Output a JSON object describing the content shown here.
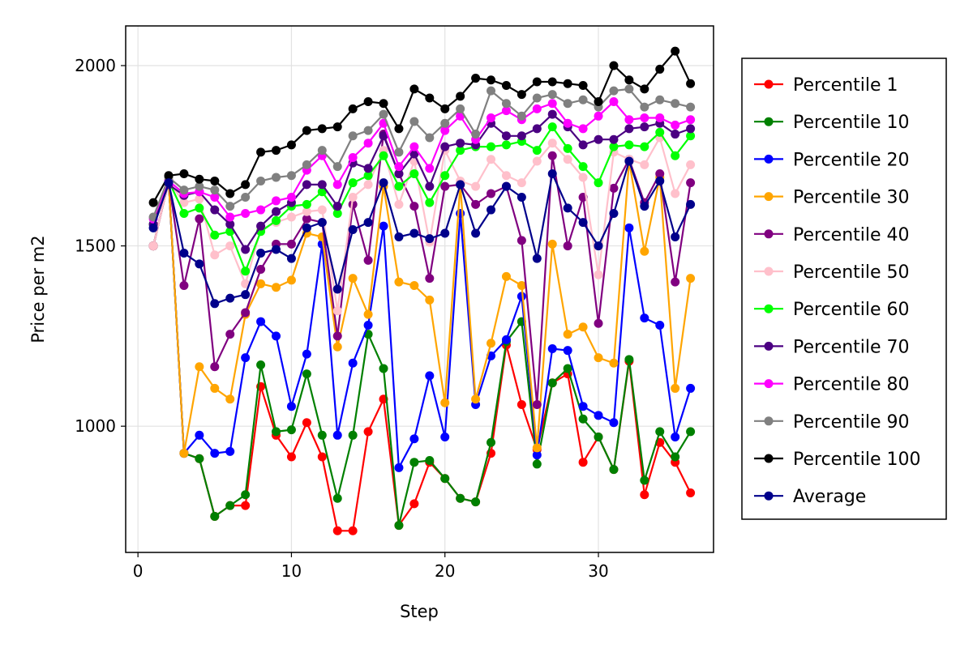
{
  "chart_data": {
    "type": "line",
    "title": "",
    "xlabel": "Step",
    "ylabel": "Price per m2",
    "xlim": [
      -0.8,
      37.5
    ],
    "ylim": [
      650,
      2110
    ],
    "xticks": [
      0,
      10,
      20,
      30
    ],
    "yticks": [
      1000,
      1500,
      2000
    ],
    "grid": true,
    "legend_position": "right",
    "x": [
      1,
      2,
      3,
      4,
      5,
      6,
      7,
      8,
      9,
      10,
      11,
      12,
      13,
      14,
      15,
      16,
      17,
      18,
      19,
      20,
      21,
      22,
      23,
      24,
      25,
      26,
      27,
      28,
      29,
      30,
      31,
      32,
      33,
      34,
      35,
      36
    ],
    "series": [
      {
        "name": "Percentile 1",
        "color": "#ff0000",
        "values": [
          1500,
          1680,
          925,
          910,
          750,
          780,
          780,
          1110,
          975,
          915,
          1010,
          915,
          710,
          710,
          985,
          1075,
          725,
          785,
          900,
          855,
          800,
          790,
          925,
          1225,
          1060,
          935,
          1120,
          1145,
          900,
          970,
          880,
          1180,
          810,
          955,
          900,
          815
        ]
      },
      {
        "name": "Percentile 10",
        "color": "#008000",
        "values": [
          1500,
          1680,
          925,
          910,
          750,
          780,
          810,
          1170,
          985,
          990,
          1145,
          975,
          800,
          975,
          1255,
          1160,
          725,
          900,
          905,
          855,
          800,
          790,
          955,
          1235,
          1290,
          895,
          1120,
          1160,
          1020,
          970,
          880,
          1185,
          850,
          985,
          915,
          985
        ]
      },
      {
        "name": "Percentile 20",
        "color": "#0000ff",
        "values": [
          1500,
          1680,
          925,
          975,
          925,
          930,
          1190,
          1290,
          1250,
          1055,
          1200,
          1505,
          975,
          1175,
          1280,
          1555,
          885,
          965,
          1140,
          970,
          1590,
          1060,
          1195,
          1240,
          1360,
          920,
          1215,
          1210,
          1055,
          1030,
          1010,
          1550,
          1300,
          1280,
          970,
          1105
        ]
      },
      {
        "name": "Percentile 30",
        "color": "#ffa500",
        "values": [
          1500,
          1680,
          925,
          1165,
          1105,
          1075,
          1310,
          1395,
          1385,
          1405,
          1535,
          1525,
          1220,
          1410,
          1310,
          1665,
          1400,
          1390,
          1350,
          1065,
          1670,
          1075,
          1230,
          1415,
          1390,
          940,
          1505,
          1255,
          1275,
          1190,
          1175,
          1735,
          1485,
          1690,
          1105,
          1410
        ]
      },
      {
        "name": "Percentile 40",
        "color": "#800080",
        "values": [
          1500,
          1680,
          1390,
          1575,
          1165,
          1255,
          1315,
          1435,
          1505,
          1505,
          1575,
          1565,
          1250,
          1615,
          1460,
          1810,
          1700,
          1610,
          1410,
          1665,
          1670,
          1615,
          1645,
          1665,
          1515,
          1060,
          1750,
          1500,
          1635,
          1285,
          1660,
          1740,
          1620,
          1700,
          1400,
          1675
        ]
      },
      {
        "name": "Percentile 50",
        "color": "#ffc0cb",
        "values": [
          1500,
          1680,
          1620,
          1630,
          1475,
          1500,
          1395,
          1545,
          1565,
          1580,
          1595,
          1600,
          1320,
          1635,
          1670,
          1765,
          1615,
          1735,
          1510,
          1765,
          1680,
          1665,
          1740,
          1695,
          1675,
          1735,
          1785,
          1740,
          1690,
          1420,
          1760,
          1740,
          1725,
          1800,
          1645,
          1725
        ]
      },
      {
        "name": "Percentile 60",
        "color": "#00ff00",
        "values": [
          1560,
          1680,
          1590,
          1605,
          1530,
          1540,
          1430,
          1540,
          1570,
          1610,
          1615,
          1650,
          1590,
          1675,
          1695,
          1750,
          1665,
          1700,
          1620,
          1695,
          1765,
          1775,
          1775,
          1780,
          1790,
          1765,
          1830,
          1770,
          1720,
          1675,
          1775,
          1780,
          1775,
          1815,
          1750,
          1805
        ]
      },
      {
        "name": "Percentile 70",
        "color": "#4b0082",
        "values": [
          1560,
          1670,
          1640,
          1650,
          1600,
          1560,
          1490,
          1555,
          1595,
          1620,
          1670,
          1670,
          1610,
          1730,
          1715,
          1805,
          1700,
          1755,
          1665,
          1775,
          1785,
          1780,
          1840,
          1805,
          1805,
          1825,
          1865,
          1830,
          1780,
          1795,
          1795,
          1825,
          1830,
          1840,
          1810,
          1825
        ]
      },
      {
        "name": "Percentile 80",
        "color": "#ff00ff",
        "values": [
          1575,
          1680,
          1645,
          1650,
          1635,
          1580,
          1590,
          1600,
          1625,
          1635,
          1710,
          1750,
          1670,
          1745,
          1785,
          1840,
          1720,
          1775,
          1715,
          1820,
          1860,
          1795,
          1855,
          1875,
          1850,
          1880,
          1895,
          1840,
          1825,
          1860,
          1900,
          1850,
          1855,
          1855,
          1835,
          1850
        ]
      },
      {
        "name": "Percentile 90",
        "color": "#808080",
        "values": [
          1580,
          1690,
          1655,
          1665,
          1655,
          1610,
          1635,
          1680,
          1690,
          1695,
          1725,
          1765,
          1720,
          1805,
          1820,
          1865,
          1760,
          1845,
          1800,
          1840,
          1880,
          1810,
          1930,
          1895,
          1860,
          1910,
          1920,
          1895,
          1905,
          1885,
          1930,
          1935,
          1885,
          1905,
          1895,
          1885
        ]
      },
      {
        "name": "Percentile 100",
        "color": "#000000",
        "values": [
          1620,
          1695,
          1700,
          1685,
          1680,
          1645,
          1670,
          1760,
          1765,
          1780,
          1820,
          1825,
          1830,
          1880,
          1900,
          1895,
          1825,
          1935,
          1910,
          1880,
          1915,
          1965,
          1960,
          1945,
          1920,
          1955,
          1955,
          1950,
          1945,
          1900,
          2000,
          1960,
          1935,
          1990,
          2040,
          1950
        ]
      },
      {
        "name": "Average",
        "color": "#00008b",
        "values": [
          1550,
          1675,
          1480,
          1450,
          1340,
          1355,
          1365,
          1480,
          1490,
          1465,
          1550,
          1565,
          1380,
          1545,
          1565,
          1675,
          1525,
          1535,
          1520,
          1535,
          1670,
          1535,
          1600,
          1665,
          1635,
          1465,
          1700,
          1605,
          1565,
          1500,
          1590,
          1735,
          1610,
          1680,
          1525,
          1615
        ]
      }
    ]
  }
}
